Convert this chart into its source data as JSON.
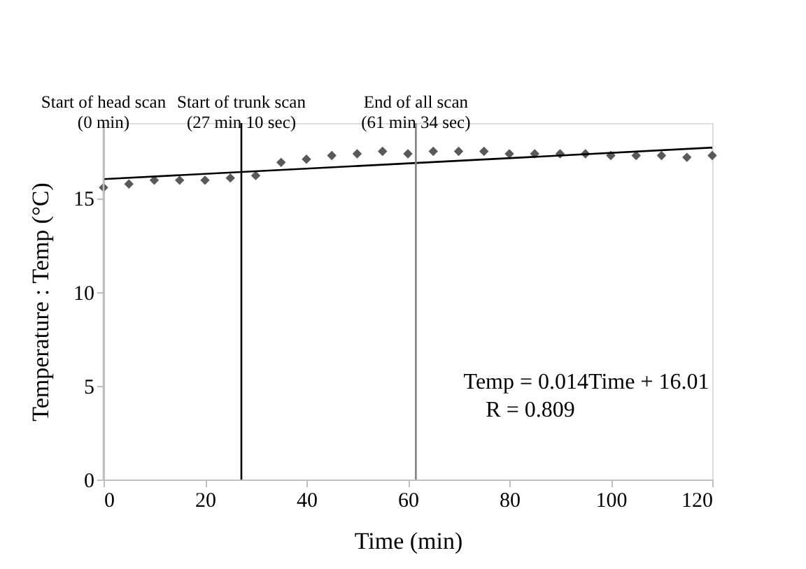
{
  "chart_data": {
    "type": "scatter",
    "xlabel": "Time (min)",
    "ylabel": "Temperature : Temp (°C)",
    "x": [
      0,
      5,
      10,
      15,
      20,
      25,
      30,
      35,
      40,
      45,
      50,
      55,
      60,
      65,
      70,
      75,
      80,
      85,
      90,
      95,
      100,
      105,
      110,
      115,
      120
    ],
    "series": [
      {
        "color": "#595959",
        "marker": "diamond",
        "values": [
          15.56,
          15.75,
          15.95,
          15.95,
          15.95,
          16.07,
          16.2,
          16.9,
          17.07,
          17.27,
          17.36,
          17.49,
          17.36,
          17.49,
          17.49,
          17.49,
          17.36,
          17.36,
          17.36,
          17.36,
          17.27,
          17.27,
          17.27,
          17.17,
          17.27
        ]
      },
      {
        "type": "line",
        "color": "#000000",
        "x": [
          0,
          120
        ],
        "values": [
          16.01,
          17.69
        ]
      }
    ],
    "xlim": [
      0,
      120
    ],
    "xticks": [
      0,
      20,
      40,
      60,
      80,
      100,
      120
    ],
    "ylim": [
      0,
      19
    ],
    "yticks": [
      0,
      5,
      10,
      15
    ],
    "grid": false,
    "ref_lines": [
      {
        "axis": "x",
        "value": 0,
        "label": "Start of head scan\n(0 min)",
        "color": "#bfbfbf"
      },
      {
        "axis": "x",
        "value": 27.17,
        "label": "Start of trunk scan\n(27 min 10 sec)",
        "color": "#000000"
      },
      {
        "axis": "x",
        "value": 61.57,
        "label": "End of  all scan\n(61 min 34 sec)",
        "color": "#808080"
      }
    ],
    "annotations": [
      "Temp = 0.014Time + 16.01",
      "R = 0.809"
    ]
  }
}
